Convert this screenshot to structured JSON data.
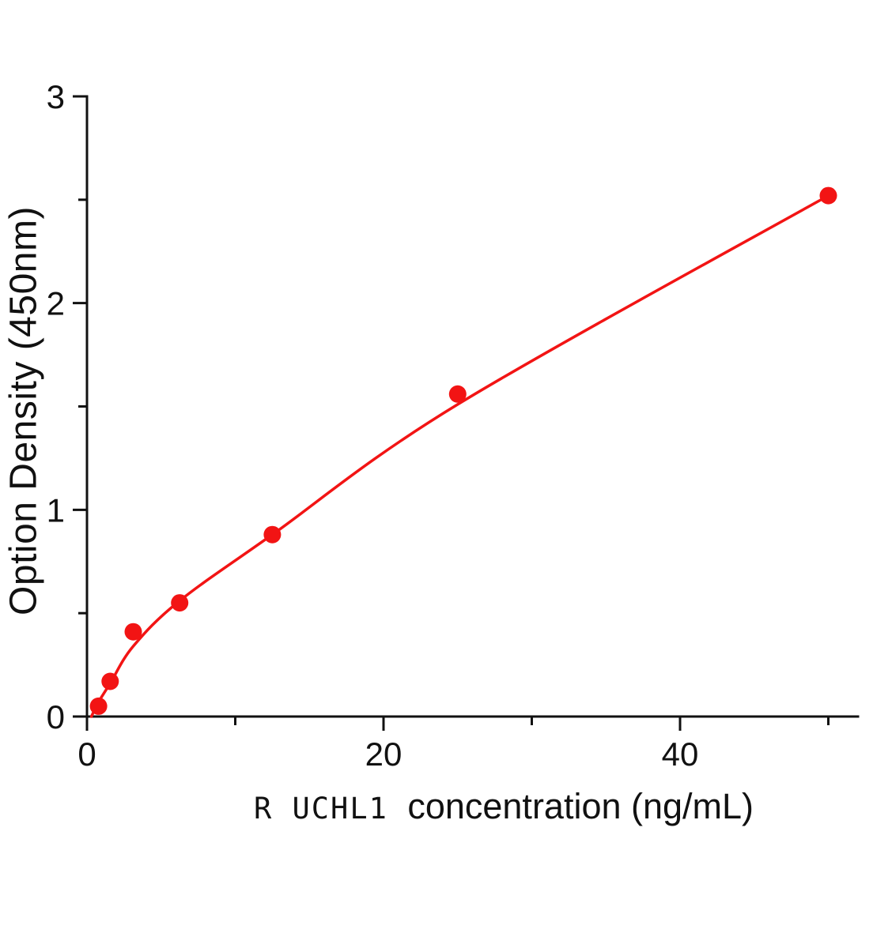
{
  "chart_data": {
    "type": "scatter",
    "title": "",
    "xlabel_prefix": "R UCHL1",
    "xlabel": "concentration (ng/mL)",
    "ylabel": "Option Density  (450nm)",
    "x": [
      0.78,
      1.56,
      3.12,
      6.25,
      12.5,
      25,
      50
    ],
    "y": [
      0.05,
      0.17,
      0.41,
      0.55,
      0.88,
      1.56,
      2.52
    ],
    "curve": [
      [
        0.3,
        0.0
      ],
      [
        0.78,
        0.07
      ],
      [
        1.56,
        0.16
      ],
      [
        3.12,
        0.34
      ],
      [
        6.25,
        0.56
      ],
      [
        12.5,
        0.88
      ],
      [
        25,
        1.51
      ],
      [
        50,
        2.52
      ]
    ],
    "xlim": [
      0,
      52
    ],
    "ylim": [
      0,
      3
    ],
    "xticks_major": [
      {
        "v": 0,
        "label": "0"
      },
      {
        "v": 20,
        "label": "20"
      },
      {
        "v": 40,
        "label": "40"
      }
    ],
    "xticks_minor": [
      10,
      30,
      50
    ],
    "yticks_major": [
      {
        "v": 0,
        "label": "0"
      },
      {
        "v": 1,
        "label": "1"
      },
      {
        "v": 2,
        "label": "2"
      },
      {
        "v": 3,
        "label": "3"
      }
    ],
    "yticks_minor": [
      0.5,
      1.5,
      2.5
    ],
    "legend": null,
    "grid": false,
    "colors": {
      "curve": "#f21414",
      "point": "#f21414",
      "axis": "#111111",
      "tick_label": "#111111"
    }
  }
}
